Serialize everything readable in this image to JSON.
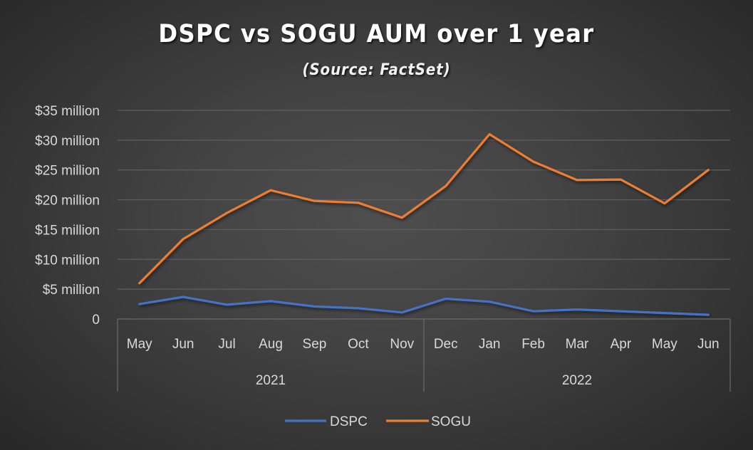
{
  "chart_data": {
    "type": "line",
    "title": "DSPC vs SOGU AUM over 1 year",
    "subtitle": "(Source: FactSet)",
    "xlabel": "",
    "ylabel": "",
    "categories": [
      "May",
      "Jun",
      "Jul",
      "Aug",
      "Sep",
      "Oct",
      "Nov",
      "Dec",
      "Jan",
      "Feb",
      "Mar",
      "Apr",
      "May",
      "Jun"
    ],
    "category_groups": [
      {
        "label": "2021",
        "start": 0,
        "end": 6
      },
      {
        "label": "2022",
        "start": 7,
        "end": 13
      }
    ],
    "y_ticks": [
      {
        "value": 0,
        "label": "0"
      },
      {
        "value": 5,
        "label": "$5 million"
      },
      {
        "value": 10,
        "label": "$10 million"
      },
      {
        "value": 15,
        "label": "$15 million"
      },
      {
        "value": 20,
        "label": "$20 million"
      },
      {
        "value": 25,
        "label": "$25 million"
      },
      {
        "value": 30,
        "label": "$30 million"
      },
      {
        "value": 35,
        "label": "$35 million"
      }
    ],
    "ylim": [
      0,
      35
    ],
    "y_units": "million USD",
    "grid": true,
    "legend_position": "bottom",
    "series": [
      {
        "name": "DSPC",
        "color": "#4472C4",
        "values": [
          2.5,
          3.7,
          2.4,
          3.0,
          2.1,
          1.8,
          1.1,
          3.4,
          2.9,
          1.3,
          1.6,
          1.3,
          1.0,
          0.7
        ]
      },
      {
        "name": "SOGU",
        "color": "#ED7D31",
        "values": [
          6.0,
          13.4,
          17.8,
          21.6,
          19.8,
          19.5,
          17.0,
          22.3,
          31.0,
          26.4,
          23.3,
          23.4,
          19.4,
          25.0
        ]
      }
    ]
  },
  "colors": {
    "gridline": "#5f5f5f",
    "axis_text": "#d9d9d9",
    "title": "#ffffff"
  }
}
